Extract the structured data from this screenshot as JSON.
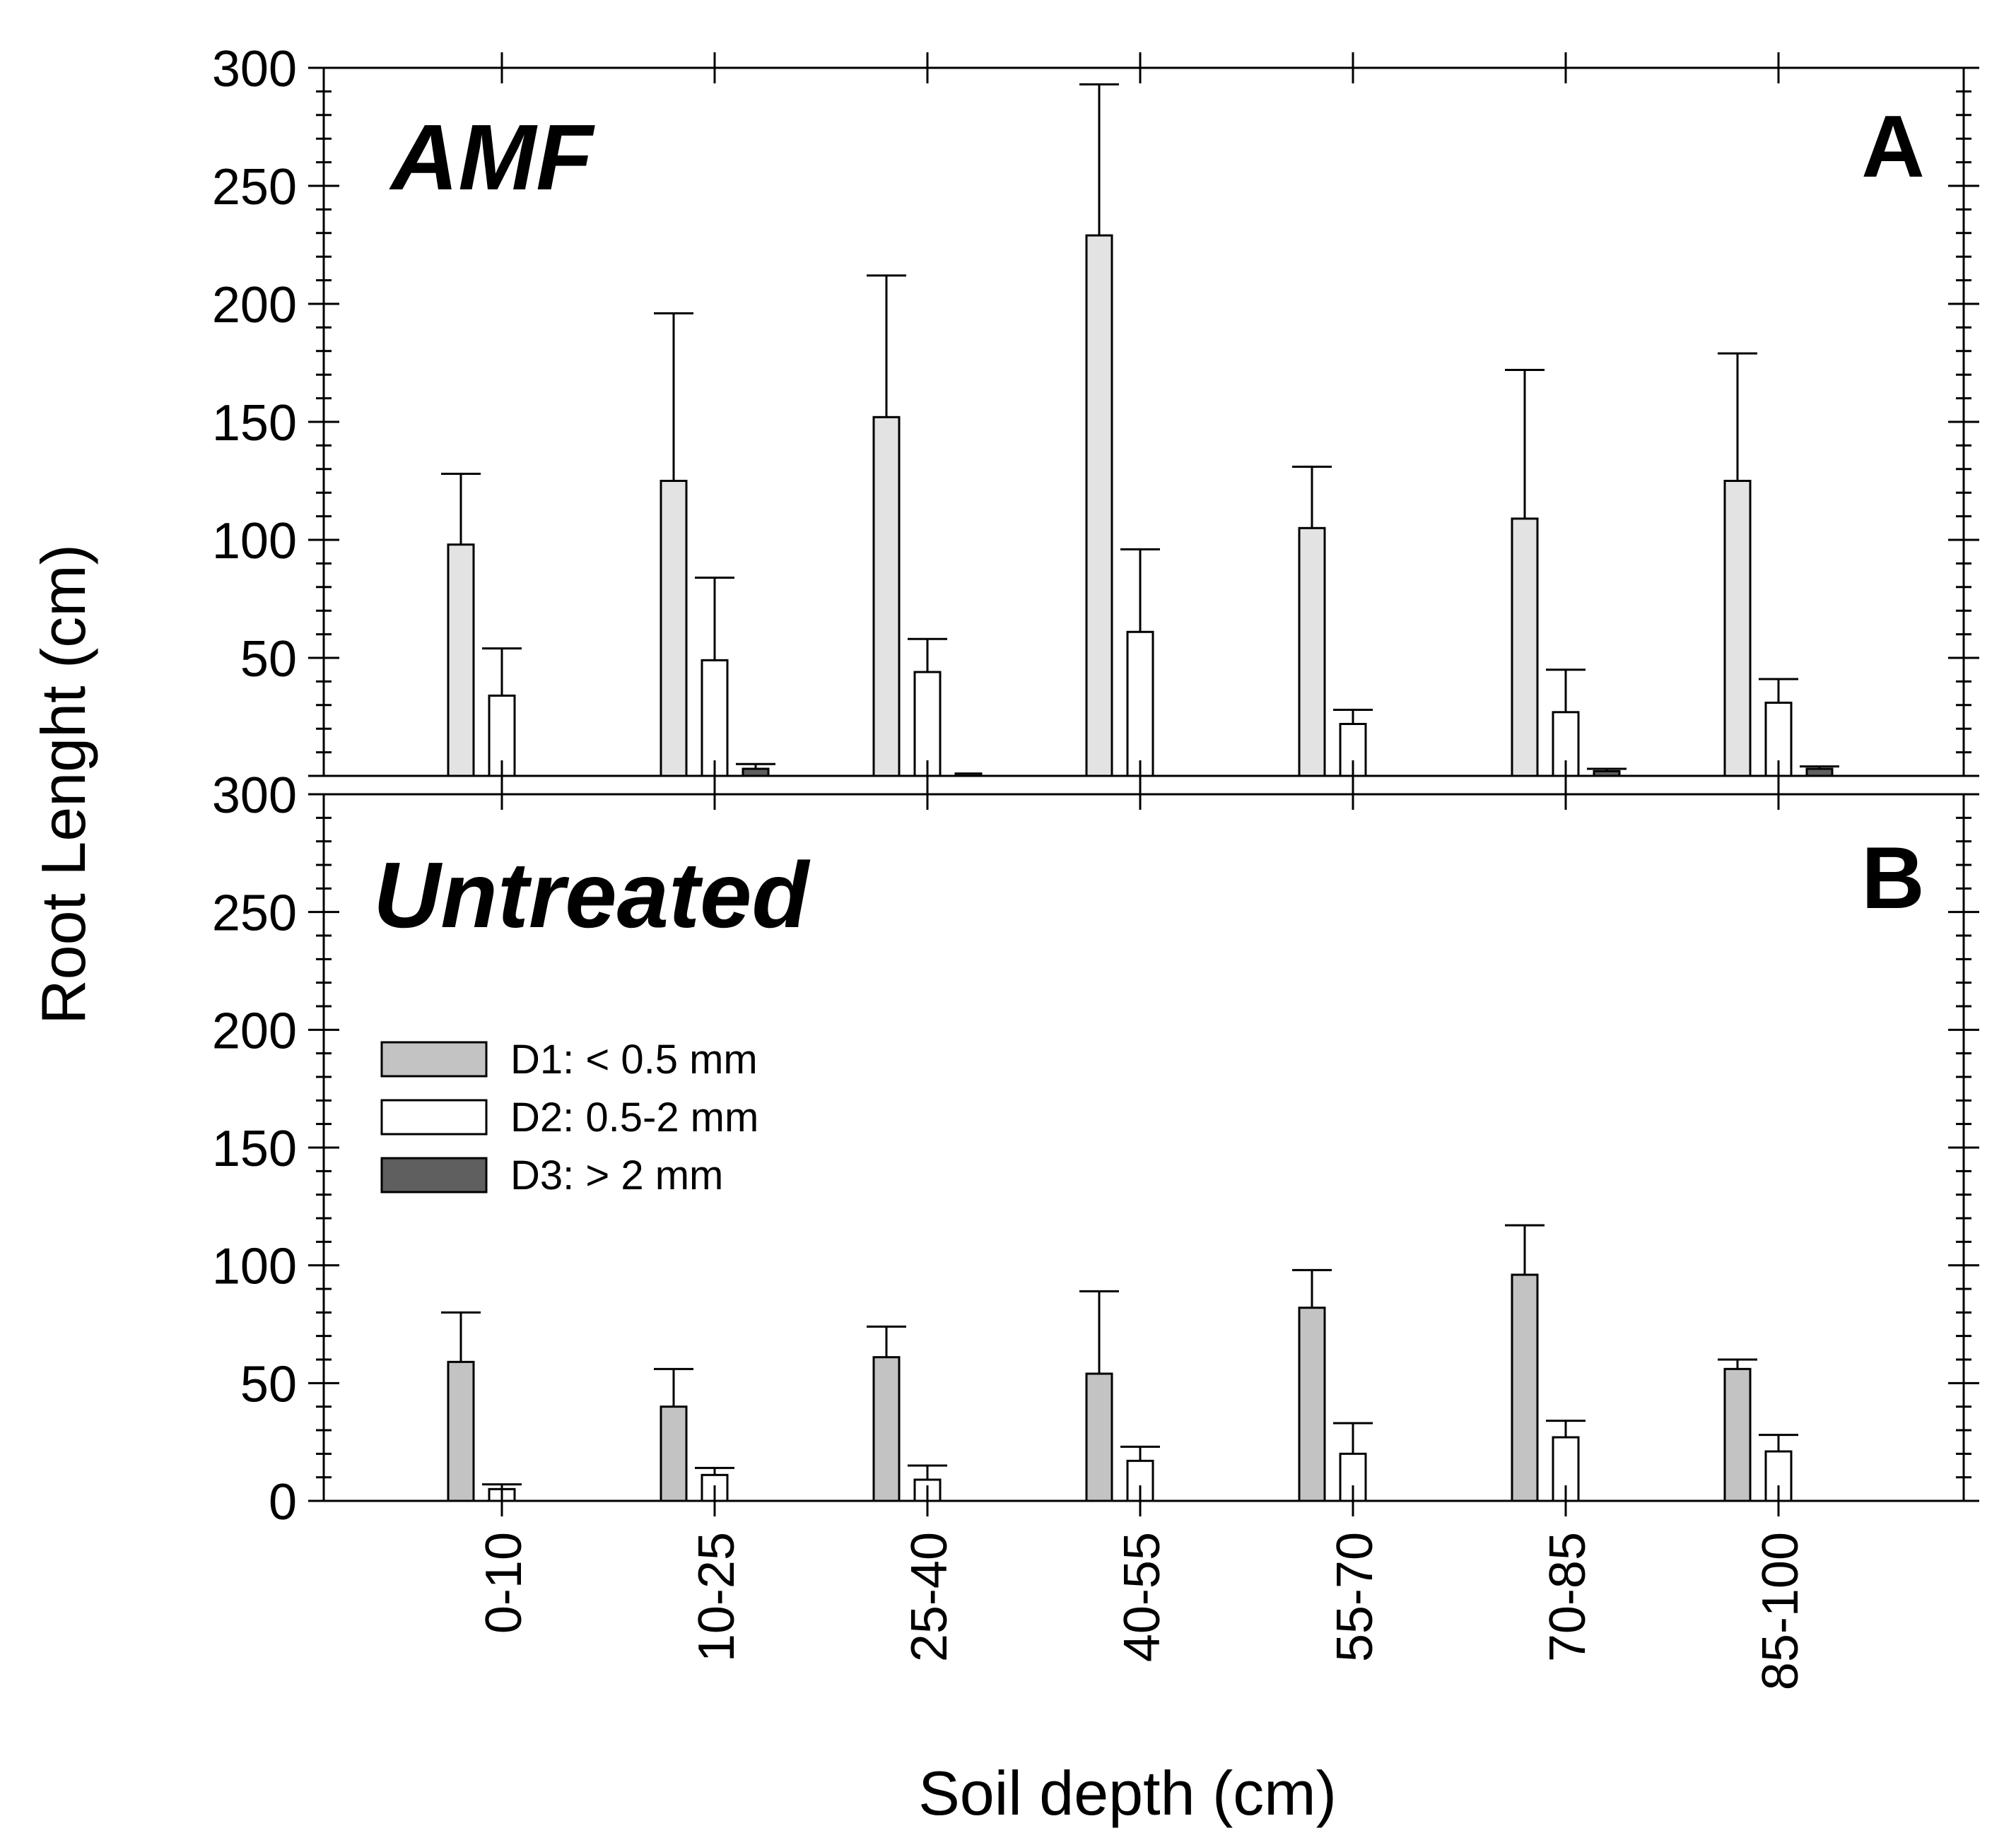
{
  "chart_data": {
    "type": "bar",
    "xlabel": "Soil depth (cm)",
    "ylabel": "Root Lenght (cm)",
    "categories": [
      "0-10",
      "10-25",
      "25-40",
      "40-55",
      "55-70",
      "70-85",
      "85-100"
    ],
    "ylim": [
      0,
      300
    ],
    "yticks": [
      0,
      50,
      100,
      150,
      200,
      250,
      300
    ],
    "panels": [
      {
        "id": "A",
        "title": "AMF",
        "letter": "A",
        "series": [
          {
            "name": "D1: < 0.5 mm",
            "color": "#e3e3e3",
            "values": [
              98,
              125,
              152,
              229,
              105,
              109,
              125
            ],
            "errors": [
              30,
              71,
              60,
              64,
              26,
              63,
              54
            ]
          },
          {
            "name": "D2: 0.5-2 mm",
            "color": "#ffffff",
            "values": [
              34,
              49,
              44,
              61,
              22,
              27,
              31
            ],
            "errors": [
              20,
              35,
              14,
              35,
              6,
              18,
              10
            ]
          },
          {
            "name": "D3: > 2 mm",
            "color": "#5f5f5f",
            "values": [
              0,
              3,
              1,
              0,
              0,
              2,
              3
            ],
            "errors": [
              0,
              2,
              0,
              0,
              0,
              1,
              1
            ]
          }
        ]
      },
      {
        "id": "B",
        "title": "Untreated",
        "letter": "B",
        "series": [
          {
            "name": "D1: < 0.5 mm",
            "color": "#c3c3c3",
            "values": [
              59,
              40,
              61,
              54,
              82,
              96,
              56
            ],
            "errors": [
              21,
              16,
              13,
              35,
              16,
              21,
              4
            ]
          },
          {
            "name": "D2: 0.5-2 mm",
            "color": "#ffffff",
            "values": [
              5,
              11,
              9,
              17,
              20,
              27,
              21
            ],
            "errors": [
              2,
              3,
              6,
              6,
              13,
              7,
              7
            ]
          },
          {
            "name": "D3: > 2 mm",
            "color": "#5f5f5f",
            "values": [
              0,
              0,
              0,
              0,
              0,
              0,
              0
            ],
            "errors": [
              0,
              0,
              0,
              0,
              0,
              0,
              0
            ]
          }
        ]
      }
    ],
    "legend": {
      "panel": "B",
      "placement": "upper-left",
      "entries": [
        {
          "label": "D1: < 0.5 mm",
          "color": "#c3c3c3"
        },
        {
          "label": "D2: 0.5-2 mm",
          "color": "#ffffff"
        },
        {
          "label": "D3: > 2 mm",
          "color": "#5f5f5f"
        }
      ]
    }
  }
}
